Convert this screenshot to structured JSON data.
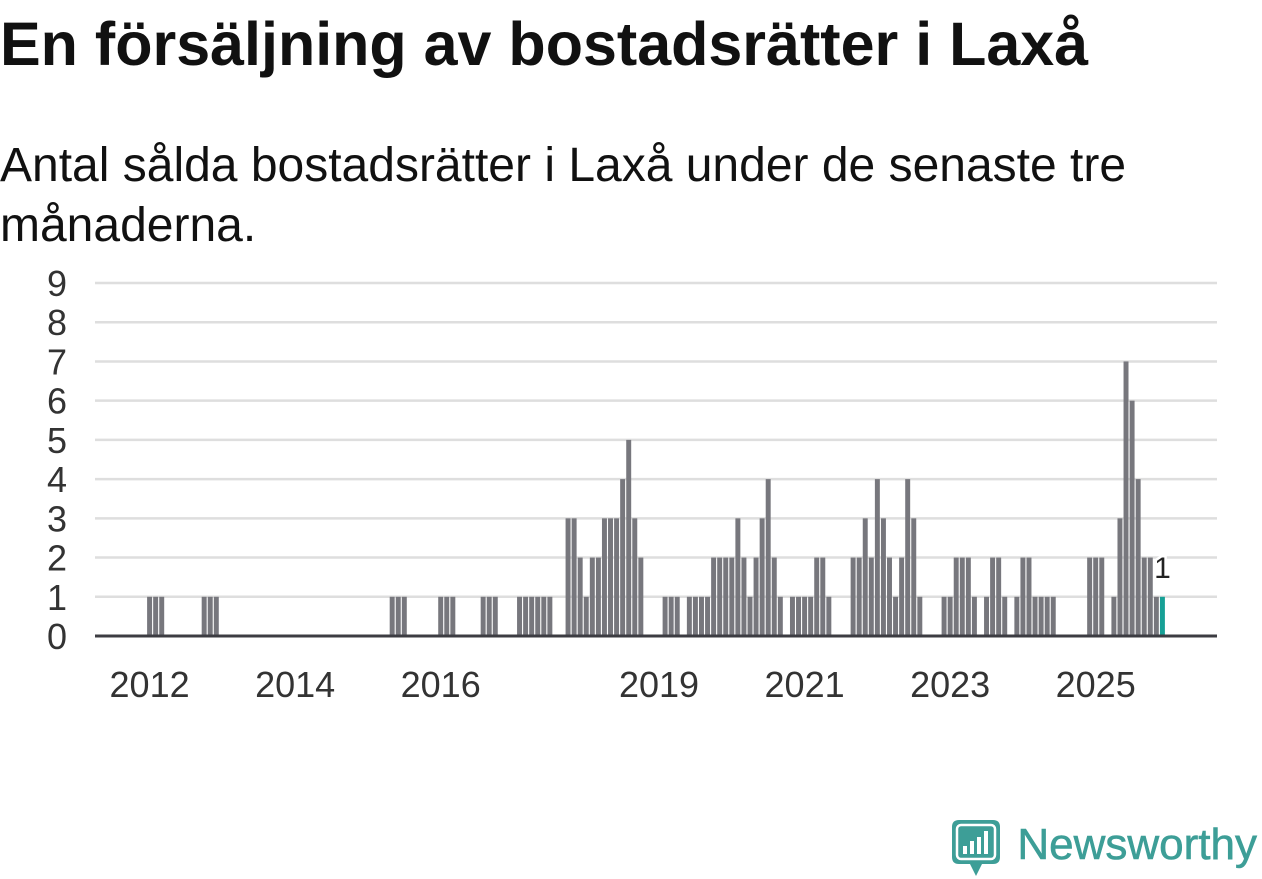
{
  "chart_data": {
    "type": "bar",
    "title": "En försäljning av bostadsrätter i Laxå",
    "subtitle": "Antal sålda bostadsrätter i Laxå under de senaste tre månaderna.",
    "xlabel": "",
    "ylabel": "",
    "start_year": 2012,
    "start_month": 1,
    "values": [
      1,
      1,
      1,
      0,
      0,
      0,
      0,
      0,
      0,
      1,
      1,
      1,
      0,
      0,
      0,
      0,
      0,
      0,
      0,
      0,
      0,
      0,
      0,
      0,
      0,
      0,
      0,
      0,
      0,
      0,
      0,
      0,
      0,
      0,
      0,
      0,
      0,
      0,
      0,
      0,
      1,
      1,
      1,
      0,
      0,
      0,
      0,
      0,
      1,
      1,
      1,
      0,
      0,
      0,
      0,
      1,
      1,
      1,
      0,
      0,
      0,
      1,
      1,
      1,
      1,
      1,
      1,
      0,
      0,
      3,
      3,
      2,
      1,
      2,
      2,
      3,
      3,
      3,
      4,
      5,
      3,
      2,
      0,
      0,
      0,
      1,
      1,
      1,
      0,
      1,
      1,
      1,
      1,
      2,
      2,
      2,
      2,
      3,
      2,
      1,
      2,
      3,
      4,
      2,
      1,
      0,
      1,
      1,
      1,
      1,
      2,
      2,
      1,
      0,
      0,
      0,
      2,
      2,
      3,
      2,
      4,
      3,
      2,
      1,
      2,
      4,
      3,
      1,
      0,
      0,
      0,
      1,
      1,
      2,
      2,
      2,
      1,
      0,
      1,
      2,
      2,
      1,
      0,
      1,
      2,
      2,
      1,
      1,
      1,
      1,
      0,
      0,
      0,
      0,
      0,
      2,
      2,
      2,
      0,
      1,
      3,
      7,
      6,
      4,
      2,
      2,
      1,
      1
    ],
    "x_range": [
      2011.25,
      2026.6667
    ],
    "ylim": [
      0,
      9
    ],
    "yticks": [
      0,
      1,
      2,
      3,
      4,
      5,
      6,
      7,
      8,
      9
    ],
    "xticks": [
      {
        "label": "2012",
        "year": 2012
      },
      {
        "label": "2014",
        "year": 2014
      },
      {
        "label": "2016",
        "year": 2016
      },
      {
        "label": "2019",
        "year": 2019
      },
      {
        "label": "2021",
        "year": 2021
      },
      {
        "label": "2023",
        "year": 2023
      },
      {
        "label": "2025",
        "year": 2025
      }
    ],
    "grid": true,
    "bar_color": "#77777d",
    "highlight": {
      "year": 2025,
      "month": 12,
      "value": 1,
      "label": "1",
      "color": "#17a096"
    }
  },
  "brand": {
    "name": "Newsworthy",
    "color": "#3d9e97",
    "icon": "newsworthy-logo-icon"
  },
  "colors": {
    "grid": "#dedede",
    "axis": "#3c3c42"
  }
}
